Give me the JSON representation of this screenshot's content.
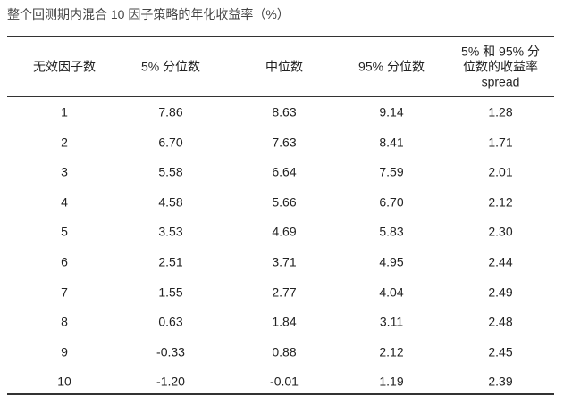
{
  "title": "整个回测期内混合 10 因子策略的年化收益率（%）",
  "table": {
    "headers": [
      [
        "无效因子数"
      ],
      [
        "5% 分位数"
      ],
      [
        "中位数"
      ],
      [
        "95% 分位数"
      ],
      [
        "5% 和 95% 分",
        "位数的收益率",
        "spread"
      ]
    ],
    "rows": [
      [
        "1",
        "7.86",
        "8.63",
        "9.14",
        "1.28"
      ],
      [
        "2",
        "6.70",
        "7.63",
        "8.41",
        "1.71"
      ],
      [
        "3",
        "5.58",
        "6.64",
        "7.59",
        "2.01"
      ],
      [
        "4",
        "4.58",
        "5.66",
        "6.70",
        "2.12"
      ],
      [
        "5",
        "3.53",
        "4.69",
        "5.83",
        "2.30"
      ],
      [
        "6",
        "2.51",
        "3.71",
        "4.95",
        "2.44"
      ],
      [
        "7",
        "1.55",
        "2.77",
        "4.04",
        "2.49"
      ],
      [
        "8",
        "0.63",
        "1.84",
        "3.11",
        "2.48"
      ],
      [
        "9",
        "-0.33",
        "0.88",
        "2.12",
        "2.45"
      ],
      [
        "10",
        "-1.20",
        "-0.01",
        "1.19",
        "2.39"
      ]
    ]
  }
}
